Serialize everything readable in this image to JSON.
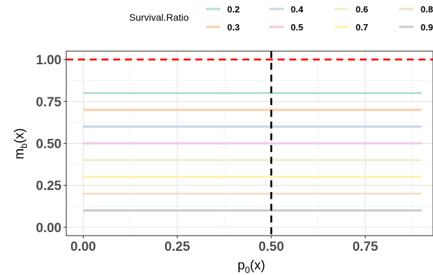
{
  "chart_data": {
    "type": "line",
    "xlabel": "p",
    "xlabel_sub": "0",
    "xlabel_suffix": "(x)",
    "ylabel": "m",
    "ylabel_sub": "b",
    "ylabel_suffix": "(x)",
    "xlim": [
      -0.045,
      0.93
    ],
    "ylim": [
      -0.05,
      1.05
    ],
    "x_ticks": [
      0.0,
      0.25,
      0.5,
      0.75
    ],
    "x_tick_labels": [
      "0.00",
      "0.25",
      "0.50",
      "0.75"
    ],
    "y_ticks": [
      0.0,
      0.25,
      0.5,
      0.75,
      1.0
    ],
    "y_tick_labels": [
      "0.00",
      "0.25",
      "0.50",
      "0.75",
      "1.00"
    ],
    "x_range": [
      0.0,
      0.9
    ],
    "grid": true,
    "legend": {
      "title": "Survival.Ratio",
      "placement": "top",
      "columns": 4
    },
    "series": [
      {
        "name": "0.2",
        "y": 0.8,
        "color": "#b3e2cd"
      },
      {
        "name": "0.3",
        "y": 0.7,
        "color": "#fdcdac"
      },
      {
        "name": "0.4",
        "y": 0.6,
        "color": "#cbd5e8"
      },
      {
        "name": "0.5",
        "y": 0.5,
        "color": "#f4cae4"
      },
      {
        "name": "0.6",
        "y": 0.4,
        "color": "#e6f5c9"
      },
      {
        "name": "0.7",
        "y": 0.3,
        "color": "#fff2ae"
      },
      {
        "name": "0.8",
        "y": 0.2,
        "color": "#f1e2cc"
      },
      {
        "name": "0.9",
        "y": 0.1,
        "color": "#cccccc"
      }
    ],
    "reference_lines": [
      {
        "orientation": "horizontal",
        "value": 1.0,
        "color": "#ff0000",
        "style": "dashed"
      },
      {
        "orientation": "vertical",
        "value": 0.5,
        "color": "#000000",
        "style": "dashed"
      }
    ]
  }
}
